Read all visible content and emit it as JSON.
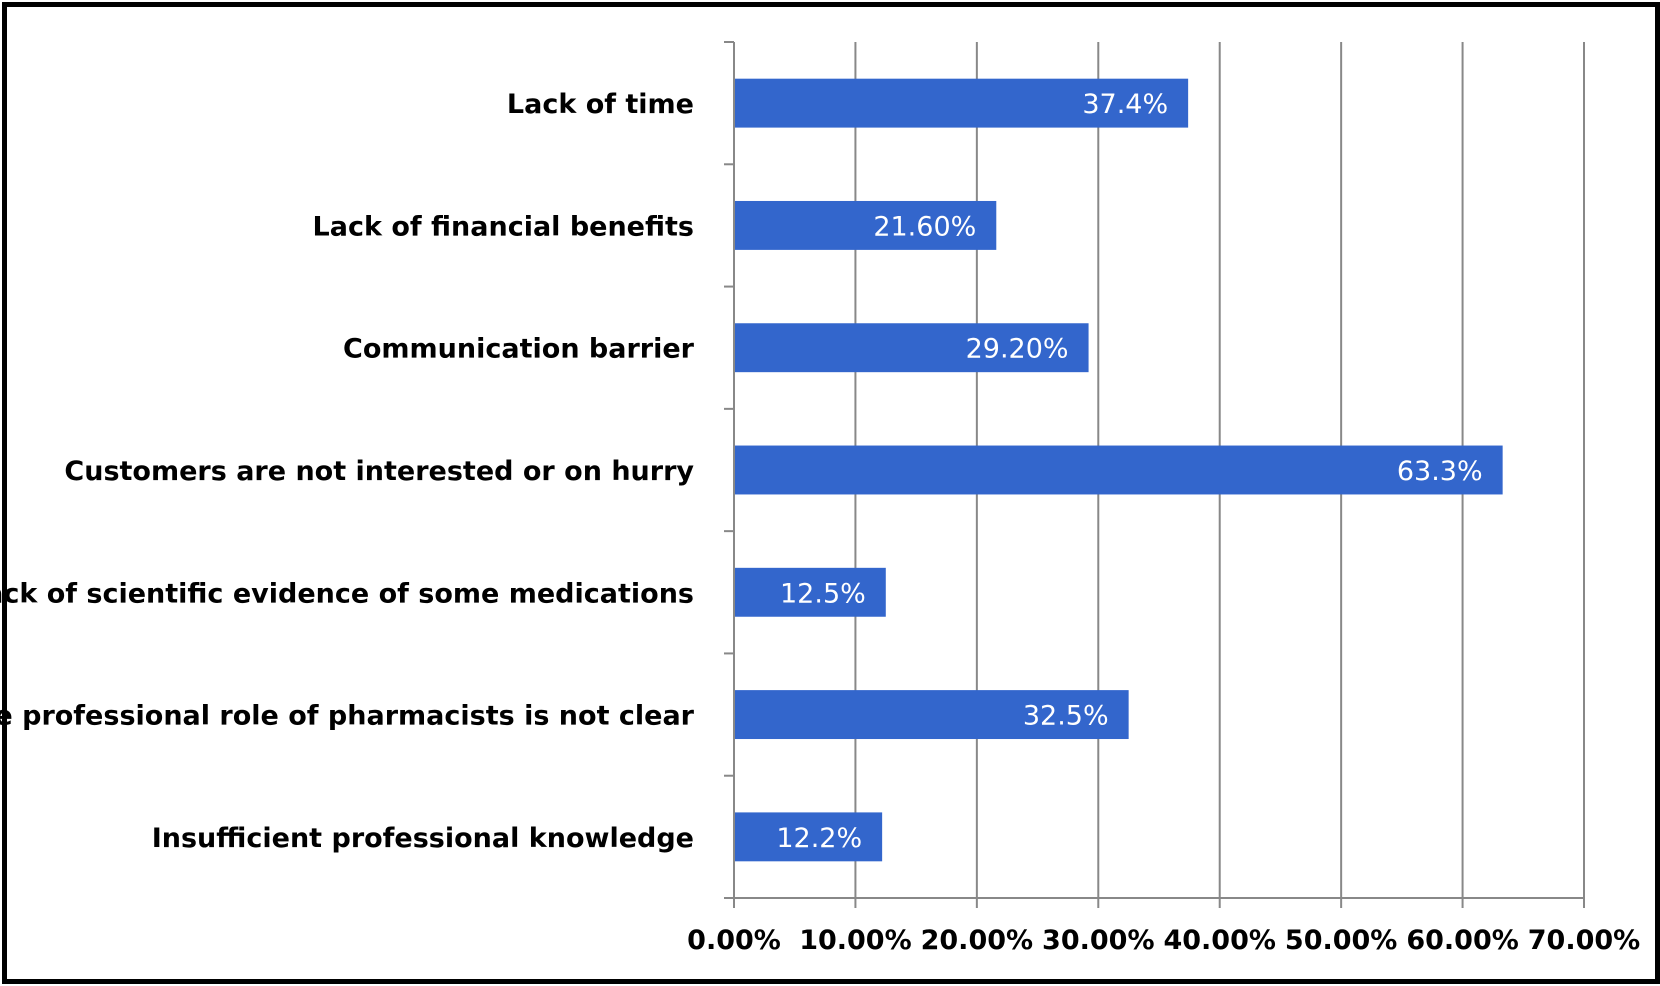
{
  "chart_data": {
    "type": "bar",
    "orientation": "horizontal",
    "title": "",
    "xlabel": "",
    "ylabel": "",
    "categories": [
      "Lack of time",
      "Lack of financial benefits",
      "Communication barrier",
      "Customers are not interested or on hurry",
      "Lack of scientific evidence of some medications",
      "The professional role of pharmacists is not clear",
      "Insufficient professional knowledge"
    ],
    "values": [
      37.4,
      21.6,
      29.2,
      63.3,
      12.5,
      32.5,
      12.2
    ],
    "data_labels": [
      "37.4%",
      "21.60%",
      "29.20%",
      "63.3%",
      "12.5%",
      "32.5%",
      "12.2%"
    ],
    "xlim": [
      0,
      70
    ],
    "x_ticks": [
      0,
      10,
      20,
      30,
      40,
      50,
      60,
      70
    ],
    "x_tick_labels": [
      "0.00%",
      "10.00%",
      "20.00%",
      "30.00%",
      "40.00%",
      "50.00%",
      "60.00%",
      "70.00%"
    ],
    "grid": "vertical",
    "legend": "none",
    "colors": {
      "bar": "#3366CC",
      "grid": "#888888",
      "frame": "#000000",
      "data_label": "#ffffff"
    }
  }
}
